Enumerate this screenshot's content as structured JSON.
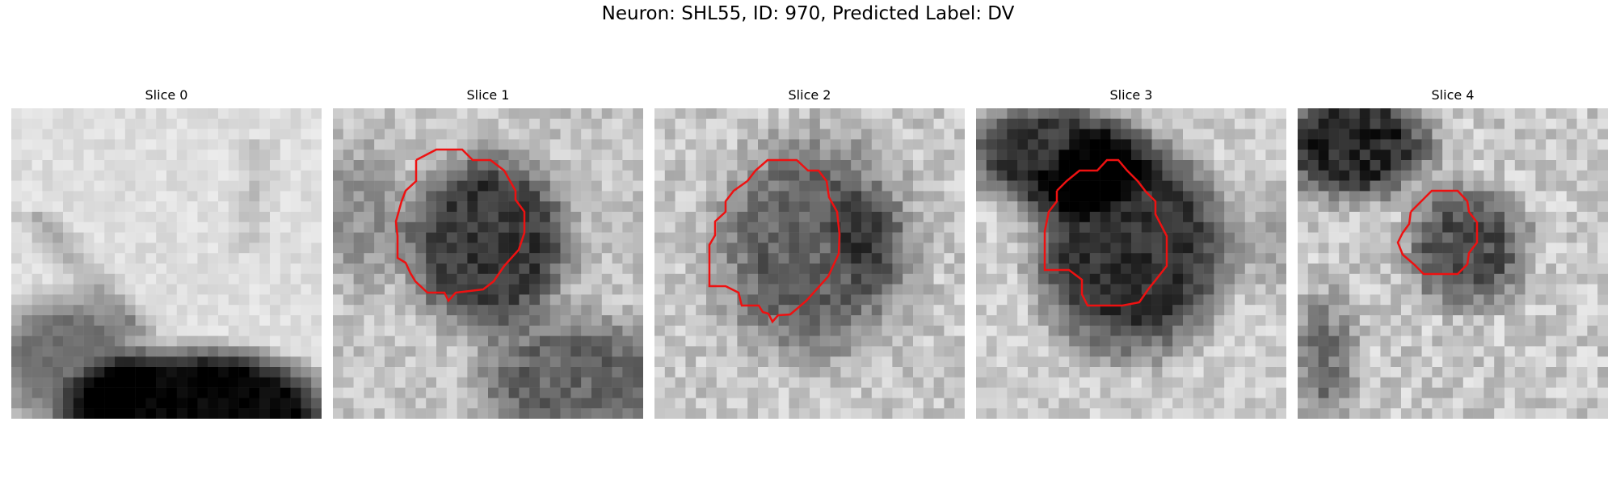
{
  "figure": {
    "title": "Neuron: SHL55, ID: 970, Predicted Label: DV"
  },
  "colors": {
    "contour": "#ee1111",
    "background": "#ffffff"
  },
  "panels": [
    {
      "label": "Slice 0"
    },
    {
      "label": "Slice 1"
    },
    {
      "label": "Slice 2"
    },
    {
      "label": "Slice 3"
    },
    {
      "label": "Slice 4"
    }
  ]
}
